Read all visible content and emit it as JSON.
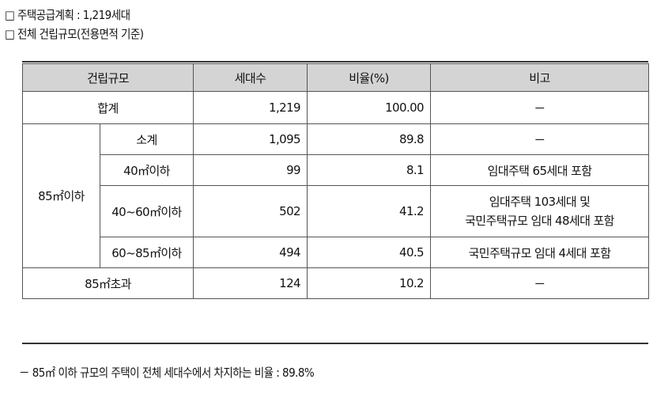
{
  "headings": {
    "plan": "□ 주택공급계획 : 1,219세대",
    "scale": "□ 전체 건립규모(전용면적 기준)"
  },
  "table": {
    "headers": [
      "건립규모",
      "세대수",
      "비율(%)",
      "비고"
    ],
    "total": {
      "label": "합계",
      "households": "1,219",
      "ratio": "100.00",
      "note": "－"
    },
    "group_label": "85㎡이하",
    "subtotal": {
      "label": "소계",
      "households": "1,095",
      "ratio": "89.8",
      "note": "－"
    },
    "rows": [
      {
        "label": "40㎡이하",
        "households": "99",
        "ratio": "8.1",
        "note": [
          "임대주택 65세대 포함"
        ]
      },
      {
        "label": "40~60㎡이하",
        "households": "502",
        "ratio": "41.2",
        "note": [
          "임대주택 103세대 및",
          "국민주택규모 임대 48세대 포함"
        ]
      },
      {
        "label": "60~85㎡이하",
        "households": "494",
        "ratio": "40.5",
        "note": [
          "국민주택규모 임대 4세대 포함"
        ]
      }
    ],
    "over": {
      "label": "85㎡초과",
      "households": "124",
      "ratio": "10.2",
      "note": "－"
    }
  },
  "footnote": "－ 85㎡ 이하 규모의 주택이 전체 세대수에서 차지하는 비율 : 89.8%"
}
